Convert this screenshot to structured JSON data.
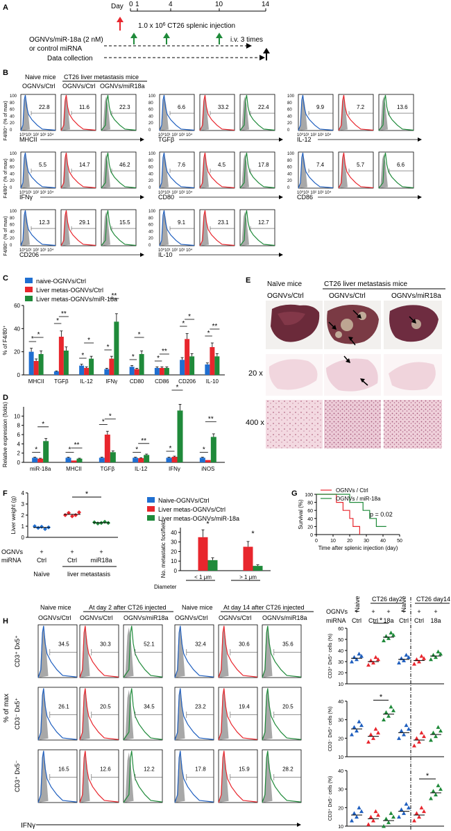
{
  "figure": {
    "panel_labels": [
      "A",
      "B",
      "C",
      "D",
      "E",
      "F",
      "G",
      "H"
    ],
    "A": {
      "day_label": "Day",
      "days": [
        "0",
        "1",
        "4",
        "10",
        "14"
      ],
      "injection_text": "1.0 x 10",
      "injection_exp": "6",
      "injection_text2": " CT26 splenic injection",
      "treatment_line1": "OGNVs/miR-18a (2 nM)",
      "treatment_line2": "or control miRNA",
      "iv_text": "i.v. 3 times",
      "data_collection": "Data collection",
      "colors": {
        "injection": "#e8262d",
        "treatment": "#1f8a3a"
      }
    },
    "B": {
      "header_naive": "Naive mice",
      "header_ct26": "CT26 liver metastasis mice",
      "col_labels": [
        "OGNVs/Ctrl",
        "OGNVs/Ctrl",
        "OGNVs/miR18a"
      ],
      "ylabel": "F4/80⁺ (% of max)",
      "yticks": [
        "100",
        "80",
        "60",
        "40",
        "20",
        "0"
      ],
      "xtick": "10⁰10¹ 10² 10³ 10⁴",
      "markers": [
        {
          "name": "MHCII",
          "values": [
            "22.8",
            "11.6",
            "22.3"
          ]
        },
        {
          "name": "TGFβ",
          "values": [
            "6.6",
            "33.2",
            "22.4"
          ]
        },
        {
          "name": "IL-12",
          "values": [
            "9.9",
            "7.2",
            "13.6"
          ]
        },
        {
          "name": "IFNγ",
          "values": [
            "5.5",
            "14.7",
            "46.2"
          ]
        },
        {
          "name": "CD80",
          "values": [
            "7.6",
            "4.5",
            "17.8"
          ]
        },
        {
          "name": "CD86",
          "values": [
            "7.4",
            "5.7",
            "6.6"
          ]
        },
        {
          "name": "CD206",
          "values": [
            "12.3",
            "29.1",
            "15.5"
          ]
        },
        {
          "name": "IL-10",
          "values": [
            "9.1",
            "23.1",
            "12.7"
          ]
        }
      ],
      "line_colors": [
        "#1f5fbf",
        "#e8262d",
        "#1f8a3a"
      ]
    },
    "E": {
      "header_naive": "Naïve mice",
      "header_ct26": "CT26 liver metastasis mice",
      "col_labels": [
        "OGNVs/Ctrl",
        "OGNVs/Ctrl",
        "OGNVs/miR18a"
      ],
      "row_labels": [
        "20 x",
        "400 x"
      ]
    },
    "F": {
      "ylabel": "Liver weight (g)",
      "row1": "OGNVs",
      "row2": "miRNA",
      "plus": "+",
      "groups": [
        "Ctrl",
        "Ctrl",
        "miR18a"
      ],
      "group_bottom": [
        "Naïve",
        "liver metastasis"
      ],
      "star": "*",
      "yticks": [
        "0",
        "1",
        "2",
        "3",
        "4"
      ],
      "points": [
        [
          1.0,
          0.85,
          0.95,
          0.75,
          0.9
        ],
        [
          2.0,
          2.2,
          1.9,
          2.0,
          2.25
        ],
        [
          1.35,
          1.25,
          1.3,
          1.4,
          1.3
        ]
      ]
    },
    "G": {
      "ylabel": "Survival (%)",
      "xlabel": "Time after splenic injection (day)",
      "legend": [
        "OGNVs / Ctrl",
        "OGNVs / miR-18a"
      ],
      "p_text": "p = 0.02",
      "xticks": [
        "0",
        "10",
        "20",
        "30",
        "40",
        "50"
      ],
      "yticks": [
        "0",
        "20",
        "40",
        "60",
        "80",
        "100"
      ]
    },
    "H": {
      "col_groups": [
        "Naive mice",
        "At day 2 after CT26 injected",
        "Naive mice",
        "At day 14 after CT26 injected"
      ],
      "col_labels": [
        "OGNVs/Ctrl",
        "OGNVs/Ctrl",
        "OGNVs/miR18a",
        "OGNVs/Ctrl",
        "OGNVs/Ctrl",
        "OGNVs/miR18a"
      ],
      "row_labels": [
        "CD3⁺ Dx5⁺",
        "CD3⁻ Dx5⁺",
        "CD3⁺ Dx5⁻"
      ],
      "ylabel": "% of max",
      "xlabel": "IFNγ",
      "values": [
        [
          "34.5",
          "30.3",
          "52.1",
          "32.4",
          "30.6",
          "35.6"
        ],
        [
          "26.1",
          "20.5",
          "34.5",
          "23.2",
          "19.4",
          "20.5"
        ],
        [
          "16.5",
          "12.6",
          "12.2",
          "17.8",
          "15.9",
          "28.2"
        ]
      ],
      "scatter_header": {
        "naive": "Naive",
        "day2": "CT26 day2",
        "day14": "CT26 day14",
        "ognvs": "OGNVs",
        "mirna": "miRNA",
        "ctrl": "Ctrl",
        "r18a": "18a"
      },
      "scatter_ylabels": [
        "CD3⁺ Dx5⁺ cells (%)",
        "CD3⁻ Dx5⁺ cells (%)",
        "CD3⁺ Dx5⁻ cells (%)"
      ],
      "scatter_yticks": [
        [
          "60",
          "50",
          "40",
          "30",
          "20",
          "10"
        ],
        [
          "40",
          "30",
          "20",
          "10"
        ],
        [
          "40",
          "30",
          "20",
          "10"
        ]
      ]
    }
  },
  "chart_data": [
    {
      "panel": "C",
      "type": "bar",
      "ylabel": "% of F4/80⁺",
      "ylim": [
        0,
        60
      ],
      "yticks": [
        "0",
        "20",
        "40",
        "60"
      ],
      "categories": [
        "MHCII",
        "TGFβ",
        "IL-12",
        "IFNγ",
        "CD80",
        "CD86",
        "CD206",
        "IL-10"
      ],
      "series": [
        {
          "name": "naive-OGNVs/Ctrl",
          "color": "#1f6fd1",
          "values": [
            20,
            3,
            8,
            5,
            7,
            6,
            13,
            9
          ]
        },
        {
          "name": "Liver metas-OGNVs/Ctrl",
          "color": "#e8262d",
          "values": [
            12,
            33,
            6,
            14,
            5,
            6,
            31,
            24
          ]
        },
        {
          "name": "Liver metas-OGNVs/miR-18a",
          "color": "#1f8a3a",
          "values": [
            18,
            21,
            14,
            46,
            18,
            6,
            16,
            16
          ]
        }
      ],
      "stars": [
        "*",
        "*",
        "**",
        "*",
        "*",
        "**",
        "**",
        "*",
        "*",
        "**",
        "*",
        "**",
        "*",
        "*",
        "*",
        "*"
      ]
    },
    {
      "panel": "D",
      "type": "bar",
      "ylabel": "Relative expression (folds)",
      "ylim": [
        0,
        12
      ],
      "yticks": [
        "0",
        "2",
        "4",
        "6",
        "8",
        "10"
      ],
      "categories": [
        "miR-18a",
        "MHCII",
        "TGFβ",
        "IL-12",
        "IFNγ",
        "iNOS"
      ],
      "series": [
        {
          "name": "naive-OGNVs/Ctrl",
          "color": "#1f6fd1",
          "values": [
            1,
            1,
            1,
            1,
            1,
            1
          ]
        },
        {
          "name": "Liver metas-OGNVs/Ctrl",
          "color": "#e8262d",
          "values": [
            0.8,
            0.4,
            6,
            0.9,
            1.2,
            0.5
          ]
        },
        {
          "name": "Liver metas-OGNVs/miR-18a",
          "color": "#1f8a3a",
          "values": [
            4.6,
            0.8,
            2.2,
            1.6,
            11.2,
            5.5
          ]
        }
      ]
    },
    {
      "panel": "F-right",
      "type": "bar",
      "ylabel": "No. metastatic foci/field",
      "yticks": [
        "0",
        "10",
        "20",
        "30",
        "40"
      ],
      "ylim": [
        0,
        45
      ],
      "categories": [
        "< 1 μm",
        "> 1 μm"
      ],
      "xlabel": "Diameter",
      "series": [
        {
          "name": "Naive-OGNVs/Ctrl",
          "color": "#1f6fd1",
          "values": [
            0,
            0
          ]
        },
        {
          "name": "Liver metas-OGNVs/Ctrl",
          "color": "#e8262d",
          "values": [
            35,
            25
          ]
        },
        {
          "name": "Liver metas-OGNVs/miR-18a",
          "color": "#1f8a3a",
          "values": [
            11,
            5
          ]
        }
      ]
    }
  ]
}
